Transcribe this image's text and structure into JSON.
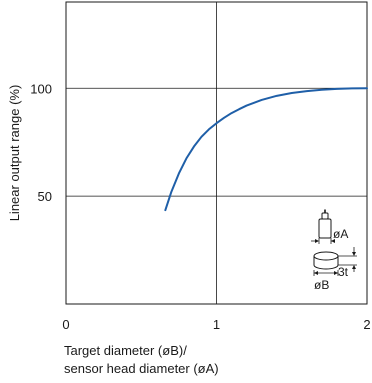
{
  "chart_data": {
    "type": "line",
    "title": "",
    "xlabel": "Target diameter (øB)/\nsensor head diameter (øA)",
    "ylabel": "Linear output range (%)",
    "xlim": [
      0,
      2
    ],
    "ylim": [
      0,
      140
    ],
    "x_ticks": [
      0,
      1,
      2
    ],
    "x_tick_labels": [
      "0",
      "1",
      "2"
    ],
    "y_ticks": [
      50,
      100
    ],
    "y_tick_labels": [
      "50",
      "100"
    ],
    "grid": true,
    "legend": "none",
    "series": [
      {
        "color": "#1f5fa8",
        "x": [
          0.66,
          0.7,
          0.75,
          0.8,
          0.85,
          0.9,
          0.95,
          1.0,
          1.05,
          1.1,
          1.15,
          1.2,
          1.3,
          1.4,
          1.5,
          1.6,
          1.7,
          1.8,
          1.9,
          2.0
        ],
        "y": [
          43.5,
          52,
          60.5,
          67.5,
          73,
          77.5,
          81,
          83.8,
          86.3,
          88.5,
          90.3,
          92,
          94.6,
          96.5,
          97.8,
          98.7,
          99.3,
          99.7,
          99.95,
          100
        ]
      }
    ],
    "annotations": {
      "sensor_label": "øA",
      "target_label": "øB",
      "thickness_label": "3t"
    }
  }
}
